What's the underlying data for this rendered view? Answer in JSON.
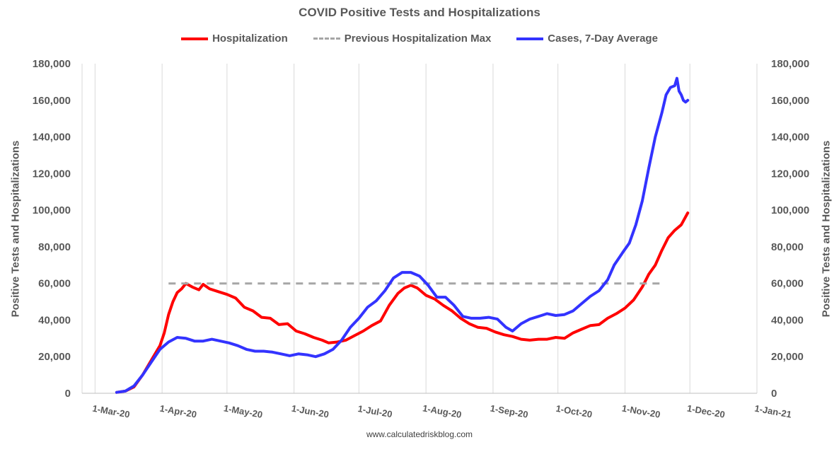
{
  "chart_data": {
    "type": "line",
    "title": "COVID Positive Tests and Hospitalizations",
    "ylabel_left": "Positive Tests and Hospitalizations",
    "ylabel_right": "Positive Tests and Hospitalizations",
    "ylim": [
      0,
      180000
    ],
    "y_ticks": [
      "0",
      "20,000",
      "40,000",
      "60,000",
      "80,000",
      "100,000",
      "120,000",
      "140,000",
      "160,000",
      "180,000"
    ],
    "x_ticks": [
      "1-Mar-20",
      "1-Apr-20",
      "1-May-20",
      "1-Jun-20",
      "1-Jul-20",
      "1-Aug-20",
      "1-Sep-20",
      "1-Oct-20",
      "1-Nov-20",
      "1-Dec-20",
      "1-Jan-21"
    ],
    "xlim": [
      "2020-02-24",
      "2021-01-01"
    ],
    "legend_position": "top",
    "grid": "vertical",
    "series": [
      {
        "name": "Hospitalization",
        "color": "#ff0000",
        "style": "solid",
        "points": [
          [
            "2020-03-11",
            500
          ],
          [
            "2020-03-15",
            1200
          ],
          [
            "2020-03-19",
            3500
          ],
          [
            "2020-03-23",
            10000
          ],
          [
            "2020-03-27",
            18000
          ],
          [
            "2020-03-31",
            26000
          ],
          [
            "2020-04-02",
            33000
          ],
          [
            "2020-04-04",
            43000
          ],
          [
            "2020-04-06",
            50000
          ],
          [
            "2020-04-08",
            55000
          ],
          [
            "2020-04-10",
            57000
          ],
          [
            "2020-04-12",
            60000
          ],
          [
            "2020-04-15",
            58000
          ],
          [
            "2020-04-18",
            56500
          ],
          [
            "2020-04-20",
            59500
          ],
          [
            "2020-04-23",
            57000
          ],
          [
            "2020-04-27",
            55500
          ],
          [
            "2020-05-01",
            54000
          ],
          [
            "2020-05-05",
            52000
          ],
          [
            "2020-05-09",
            47000
          ],
          [
            "2020-05-13",
            45000
          ],
          [
            "2020-05-17",
            41500
          ],
          [
            "2020-05-21",
            41000
          ],
          [
            "2020-05-25",
            37500
          ],
          [
            "2020-05-29",
            38000
          ],
          [
            "2020-06-02",
            34000
          ],
          [
            "2020-06-06",
            32500
          ],
          [
            "2020-06-10",
            30500
          ],
          [
            "2020-06-14",
            29000
          ],
          [
            "2020-06-17",
            27500
          ],
          [
            "2020-06-21",
            28000
          ],
          [
            "2020-06-25",
            29000
          ],
          [
            "2020-06-29",
            31500
          ],
          [
            "2020-07-03",
            34000
          ],
          [
            "2020-07-07",
            37000
          ],
          [
            "2020-07-11",
            39500
          ],
          [
            "2020-07-15",
            48000
          ],
          [
            "2020-07-19",
            54500
          ],
          [
            "2020-07-22",
            57500
          ],
          [
            "2020-07-25",
            59000
          ],
          [
            "2020-07-28",
            57500
          ],
          [
            "2020-08-01",
            53500
          ],
          [
            "2020-08-05",
            51500
          ],
          [
            "2020-08-09",
            48000
          ],
          [
            "2020-08-13",
            45000
          ],
          [
            "2020-08-17",
            41000
          ],
          [
            "2020-08-21",
            38000
          ],
          [
            "2020-08-25",
            36000
          ],
          [
            "2020-08-29",
            35500
          ],
          [
            "2020-09-02",
            33500
          ],
          [
            "2020-09-06",
            32000
          ],
          [
            "2020-09-10",
            31000
          ],
          [
            "2020-09-14",
            29500
          ],
          [
            "2020-09-18",
            29000
          ],
          [
            "2020-09-22",
            29500
          ],
          [
            "2020-09-26",
            29500
          ],
          [
            "2020-09-30",
            30500
          ],
          [
            "2020-10-04",
            30000
          ],
          [
            "2020-10-08",
            33000
          ],
          [
            "2020-10-12",
            35000
          ],
          [
            "2020-10-16",
            37000
          ],
          [
            "2020-10-20",
            37500
          ],
          [
            "2020-10-24",
            41000
          ],
          [
            "2020-10-28",
            43500
          ],
          [
            "2020-11-01",
            46500
          ],
          [
            "2020-11-05",
            51000
          ],
          [
            "2020-11-09",
            58000
          ],
          [
            "2020-11-12",
            65000
          ],
          [
            "2020-11-15",
            70000
          ],
          [
            "2020-11-18",
            78000
          ],
          [
            "2020-11-21",
            85000
          ],
          [
            "2020-11-24",
            89000
          ],
          [
            "2020-11-27",
            92000
          ],
          [
            "2020-11-30",
            98500
          ]
        ]
      },
      {
        "name": "Previous Hospitalization Max",
        "color": "#a6a6a6",
        "style": "dashed",
        "points": [
          [
            "2020-04-04",
            60000
          ],
          [
            "2020-11-17",
            60000
          ]
        ]
      },
      {
        "name": "Cases, 7-Day Average",
        "color": "#3333ff",
        "style": "solid",
        "points": [
          [
            "2020-03-11",
            500
          ],
          [
            "2020-03-15",
            1200
          ],
          [
            "2020-03-19",
            4000
          ],
          [
            "2020-03-23",
            10000
          ],
          [
            "2020-03-27",
            17000
          ],
          [
            "2020-03-31",
            24000
          ],
          [
            "2020-04-04",
            28000
          ],
          [
            "2020-04-08",
            30500
          ],
          [
            "2020-04-12",
            30000
          ],
          [
            "2020-04-16",
            28500
          ],
          [
            "2020-04-20",
            28500
          ],
          [
            "2020-04-24",
            29500
          ],
          [
            "2020-04-28",
            28500
          ],
          [
            "2020-05-02",
            27500
          ],
          [
            "2020-05-06",
            26000
          ],
          [
            "2020-05-10",
            24000
          ],
          [
            "2020-05-14",
            23000
          ],
          [
            "2020-05-18",
            23000
          ],
          [
            "2020-05-22",
            22500
          ],
          [
            "2020-05-26",
            21500
          ],
          [
            "2020-05-30",
            20500
          ],
          [
            "2020-06-03",
            21500
          ],
          [
            "2020-06-07",
            21000
          ],
          [
            "2020-06-11",
            20000
          ],
          [
            "2020-06-15",
            21500
          ],
          [
            "2020-06-19",
            24000
          ],
          [
            "2020-06-23",
            29000
          ],
          [
            "2020-06-27",
            36000
          ],
          [
            "2020-07-01",
            41000
          ],
          [
            "2020-07-05",
            47000
          ],
          [
            "2020-07-09",
            50500
          ],
          [
            "2020-07-13",
            56000
          ],
          [
            "2020-07-17",
            63000
          ],
          [
            "2020-07-21",
            66000
          ],
          [
            "2020-07-25",
            66000
          ],
          [
            "2020-07-29",
            64000
          ],
          [
            "2020-08-02",
            59000
          ],
          [
            "2020-08-06",
            52500
          ],
          [
            "2020-08-10",
            52500
          ],
          [
            "2020-08-14",
            48000
          ],
          [
            "2020-08-18",
            42000
          ],
          [
            "2020-08-22",
            41000
          ],
          [
            "2020-08-26",
            41000
          ],
          [
            "2020-08-30",
            41500
          ],
          [
            "2020-09-03",
            40500
          ],
          [
            "2020-09-07",
            36000
          ],
          [
            "2020-09-10",
            34000
          ],
          [
            "2020-09-14",
            38000
          ],
          [
            "2020-09-18",
            40500
          ],
          [
            "2020-09-22",
            42000
          ],
          [
            "2020-09-26",
            43500
          ],
          [
            "2020-09-30",
            42500
          ],
          [
            "2020-10-04",
            43000
          ],
          [
            "2020-10-08",
            45000
          ],
          [
            "2020-10-12",
            49000
          ],
          [
            "2020-10-16",
            53000
          ],
          [
            "2020-10-20",
            56000
          ],
          [
            "2020-10-24",
            62000
          ],
          [
            "2020-10-27",
            70000
          ],
          [
            "2020-10-31",
            77000
          ],
          [
            "2020-11-03",
            82000
          ],
          [
            "2020-11-06",
            92000
          ],
          [
            "2020-11-09",
            105000
          ],
          [
            "2020-11-12",
            123000
          ],
          [
            "2020-11-15",
            140000
          ],
          [
            "2020-11-18",
            153000
          ],
          [
            "2020-11-20",
            163000
          ],
          [
            "2020-11-22",
            167000
          ],
          [
            "2020-11-24",
            168000
          ],
          [
            "2020-11-25",
            172000
          ],
          [
            "2020-11-26",
            165000
          ],
          [
            "2020-11-27",
            163000
          ],
          [
            "2020-11-28",
            160000
          ],
          [
            "2020-11-29",
            159000
          ],
          [
            "2020-11-30",
            160000
          ]
        ]
      }
    ]
  },
  "footer": "www.calculatedriskblog.com"
}
